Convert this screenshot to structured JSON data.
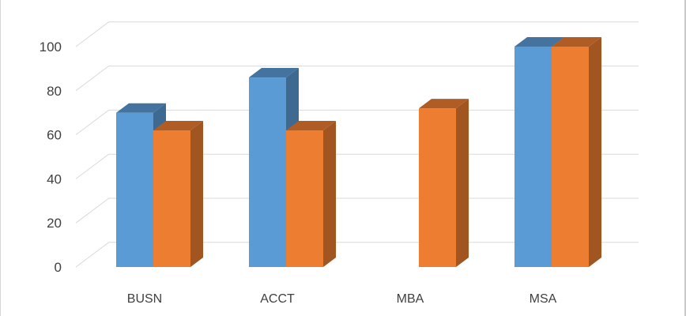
{
  "chart_data": {
    "type": "bar",
    "style": "3d-clustered-column",
    "categories": [
      "BUSN",
      "ACCT",
      "MBA",
      "MSA"
    ],
    "series": [
      {
        "color": "#5b9bd5",
        "values": [
          70,
          86,
          null,
          100
        ]
      },
      {
        "color": "#ed7d31",
        "values": [
          62,
          62,
          72,
          100
        ]
      }
    ],
    "yticks": [
      0,
      20,
      40,
      60,
      80,
      100
    ],
    "ylim": [
      0,
      100
    ],
    "grid": true,
    "legend": "none"
  }
}
